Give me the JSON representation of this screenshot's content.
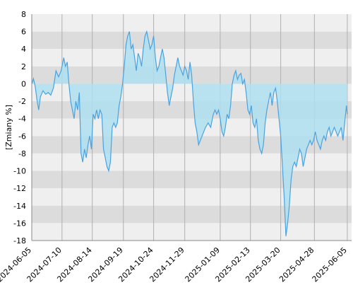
{
  "chart_data": {
    "type": "area",
    "title": "",
    "xlabel": "",
    "ylabel": "[Zmiany %]",
    "ylim": [
      -18,
      8
    ],
    "yticks": [
      8,
      6,
      4,
      2,
      0,
      -2,
      -4,
      -6,
      -8,
      -10,
      -12,
      -14,
      -16,
      -18
    ],
    "xticks": [
      "2024-06-05",
      "2024-07-10",
      "2024-08-14",
      "2024-09-19",
      "2024-10-24",
      "2024-11-29",
      "2025-01-09",
      "2025-02-13",
      "2025-03-20",
      "2025-04-28",
      "2025-06-05"
    ],
    "xlim": [
      "2024-06-05",
      "2025-06-10"
    ],
    "grid": true,
    "series": [
      {
        "line_color": "#4aa3df",
        "fill_color": "#aedff0",
        "points": [
          [
            "2024-06-05",
            0.0
          ],
          [
            "2024-06-07",
            0.6
          ],
          [
            "2024-06-09",
            -0.3
          ],
          [
            "2024-06-11",
            -1.8
          ],
          [
            "2024-06-13",
            -3.0
          ],
          [
            "2024-06-15",
            -1.5
          ],
          [
            "2024-06-18",
            -0.8
          ],
          [
            "2024-06-21",
            -1.2
          ],
          [
            "2024-06-24",
            -1.0
          ],
          [
            "2024-06-27",
            -1.3
          ],
          [
            "2024-06-30",
            -0.5
          ],
          [
            "2024-07-03",
            1.5
          ],
          [
            "2024-07-06",
            0.8
          ],
          [
            "2024-07-09",
            1.5
          ],
          [
            "2024-07-12",
            3.0
          ],
          [
            "2024-07-14",
            2.0
          ],
          [
            "2024-07-16",
            2.5
          ],
          [
            "2024-07-18",
            0.0
          ],
          [
            "2024-07-20",
            -2.0
          ],
          [
            "2024-07-22",
            -3.0
          ],
          [
            "2024-07-24",
            -4.0
          ],
          [
            "2024-07-26",
            -2.0
          ],
          [
            "2024-07-28",
            -3.0
          ],
          [
            "2024-07-30",
            -1.0
          ],
          [
            "2024-08-01",
            -8.0
          ],
          [
            "2024-08-03",
            -9.0
          ],
          [
            "2024-08-05",
            -7.5
          ],
          [
            "2024-08-07",
            -8.5
          ],
          [
            "2024-08-09",
            -7.0
          ],
          [
            "2024-08-11",
            -6.0
          ],
          [
            "2024-08-13",
            -7.5
          ],
          [
            "2024-08-15",
            -3.5
          ],
          [
            "2024-08-17",
            -4.0
          ],
          [
            "2024-08-19",
            -3.0
          ],
          [
            "2024-08-21",
            -4.0
          ],
          [
            "2024-08-23",
            -3.0
          ],
          [
            "2024-08-25",
            -3.5
          ],
          [
            "2024-08-27",
            -7.5
          ],
          [
            "2024-08-29",
            -8.5
          ],
          [
            "2024-08-31",
            -9.5
          ],
          [
            "2024-09-02",
            -10.0
          ],
          [
            "2024-09-04",
            -9.0
          ],
          [
            "2024-09-06",
            -5.0
          ],
          [
            "2024-09-08",
            -4.5
          ],
          [
            "2024-09-10",
            -5.0
          ],
          [
            "2024-09-12",
            -4.5
          ],
          [
            "2024-09-14",
            -2.5
          ],
          [
            "2024-09-16",
            -1.5
          ],
          [
            "2024-09-18",
            0.0
          ],
          [
            "2024-09-20",
            2.0
          ],
          [
            "2024-09-22",
            4.5
          ],
          [
            "2024-09-24",
            5.5
          ],
          [
            "2024-09-26",
            6.0
          ],
          [
            "2024-09-28",
            4.0
          ],
          [
            "2024-09-30",
            4.5
          ],
          [
            "2024-10-02",
            3.0
          ],
          [
            "2024-10-04",
            1.5
          ],
          [
            "2024-10-06",
            3.5
          ],
          [
            "2024-10-08",
            3.0
          ],
          [
            "2024-10-10",
            2.0
          ],
          [
            "2024-10-12",
            4.0
          ],
          [
            "2024-10-14",
            5.5
          ],
          [
            "2024-10-16",
            6.0
          ],
          [
            "2024-10-18",
            5.0
          ],
          [
            "2024-10-20",
            4.0
          ],
          [
            "2024-10-22",
            4.5
          ],
          [
            "2024-10-24",
            5.5
          ],
          [
            "2024-10-26",
            3.0
          ],
          [
            "2024-10-28",
            1.5
          ],
          [
            "2024-10-30",
            2.0
          ],
          [
            "2024-11-01",
            3.0
          ],
          [
            "2024-11-03",
            4.0
          ],
          [
            "2024-11-05",
            3.0
          ],
          [
            "2024-11-07",
            1.0
          ],
          [
            "2024-11-09",
            -1.0
          ],
          [
            "2024-11-11",
            -2.5
          ],
          [
            "2024-11-13",
            -1.5
          ],
          [
            "2024-11-15",
            -0.5
          ],
          [
            "2024-11-17",
            1.0
          ],
          [
            "2024-11-19",
            2.0
          ],
          [
            "2024-11-21",
            3.0
          ],
          [
            "2024-11-23",
            2.0
          ],
          [
            "2024-11-25",
            1.5
          ],
          [
            "2024-11-27",
            1.0
          ],
          [
            "2024-11-29",
            2.0
          ],
          [
            "2024-12-01",
            1.5
          ],
          [
            "2024-12-03",
            0.5
          ],
          [
            "2024-12-05",
            2.5
          ],
          [
            "2024-12-07",
            1.0
          ],
          [
            "2024-12-09",
            -2.0
          ],
          [
            "2024-12-11",
            -4.5
          ],
          [
            "2024-12-13",
            -5.5
          ],
          [
            "2024-12-15",
            -7.0
          ],
          [
            "2024-12-17",
            -6.5
          ],
          [
            "2024-12-19",
            -6.0
          ],
          [
            "2024-12-21",
            -5.5
          ],
          [
            "2024-12-23",
            -5.0
          ],
          [
            "2024-12-26",
            -4.5
          ],
          [
            "2024-12-29",
            -5.0
          ],
          [
            "2025-01-01",
            -3.5
          ],
          [
            "2025-01-03",
            -3.0
          ],
          [
            "2025-01-05",
            -3.5
          ],
          [
            "2025-01-07",
            -3.0
          ],
          [
            "2025-01-09",
            -4.0
          ],
          [
            "2025-01-11",
            -5.5
          ],
          [
            "2025-01-13",
            -6.0
          ],
          [
            "2025-01-15",
            -5.0
          ],
          [
            "2025-01-17",
            -3.5
          ],
          [
            "2025-01-19",
            -4.0
          ],
          [
            "2025-01-21",
            -2.5
          ],
          [
            "2025-01-23",
            0.0
          ],
          [
            "2025-01-25",
            1.0
          ],
          [
            "2025-01-27",
            1.5
          ],
          [
            "2025-01-29",
            0.5
          ],
          [
            "2025-01-31",
            1.0
          ],
          [
            "2025-02-02",
            1.2
          ],
          [
            "2025-02-04",
            0.0
          ],
          [
            "2025-02-06",
            0.5
          ],
          [
            "2025-02-08",
            -1.0
          ],
          [
            "2025-02-10",
            -3.0
          ],
          [
            "2025-02-12",
            -3.5
          ],
          [
            "2025-02-14",
            -2.5
          ],
          [
            "2025-02-16",
            -4.5
          ],
          [
            "2025-02-18",
            -5.0
          ],
          [
            "2025-02-20",
            -4.0
          ],
          [
            "2025-02-22",
            -6.5
          ],
          [
            "2025-02-24",
            -7.5
          ],
          [
            "2025-02-26",
            -8.0
          ],
          [
            "2025-02-28",
            -7.0
          ],
          [
            "2025-03-02",
            -4.5
          ],
          [
            "2025-03-04",
            -3.0
          ],
          [
            "2025-03-06",
            -2.0
          ],
          [
            "2025-03-08",
            -1.0
          ],
          [
            "2025-03-10",
            -2.5
          ],
          [
            "2025-03-12",
            -1.0
          ],
          [
            "2025-03-14",
            -0.5
          ],
          [
            "2025-03-16",
            -2.0
          ],
          [
            "2025-03-18",
            -4.0
          ],
          [
            "2025-03-20",
            -6.0
          ],
          [
            "2025-03-22",
            -9.5
          ],
          [
            "2025-03-24",
            -13.0
          ],
          [
            "2025-03-26",
            -17.5
          ],
          [
            "2025-03-28",
            -16.0
          ],
          [
            "2025-03-30",
            -14.0
          ],
          [
            "2025-04-01",
            -11.0
          ],
          [
            "2025-04-03",
            -9.5
          ],
          [
            "2025-04-05",
            -9.0
          ],
          [
            "2025-04-07",
            -9.5
          ],
          [
            "2025-04-09",
            -8.5
          ],
          [
            "2025-04-11",
            -7.5
          ],
          [
            "2025-04-13",
            -8.0
          ],
          [
            "2025-04-15",
            -9.5
          ],
          [
            "2025-04-17",
            -8.5
          ],
          [
            "2025-04-19",
            -7.5
          ],
          [
            "2025-04-21",
            -7.0
          ],
          [
            "2025-04-23",
            -6.5
          ],
          [
            "2025-04-25",
            -7.0
          ],
          [
            "2025-04-27",
            -6.5
          ],
          [
            "2025-04-29",
            -5.5
          ],
          [
            "2025-05-01",
            -6.5
          ],
          [
            "2025-05-03",
            -7.0
          ],
          [
            "2025-05-05",
            -7.5
          ],
          [
            "2025-05-07",
            -6.5
          ],
          [
            "2025-05-09",
            -6.0
          ],
          [
            "2025-05-11",
            -6.5
          ],
          [
            "2025-05-13",
            -5.5
          ],
          [
            "2025-05-15",
            -5.0
          ],
          [
            "2025-05-17",
            -6.0
          ],
          [
            "2025-05-19",
            -5.5
          ],
          [
            "2025-05-21",
            -5.0
          ],
          [
            "2025-05-23",
            -5.5
          ],
          [
            "2025-05-25",
            -6.0
          ],
          [
            "2025-05-27",
            -5.5
          ],
          [
            "2025-05-29",
            -5.0
          ],
          [
            "2025-05-31",
            -6.5
          ],
          [
            "2025-06-02",
            -4.5
          ],
          [
            "2025-06-04",
            -2.5
          ],
          [
            "2025-06-05",
            -3.5
          ]
        ]
      }
    ]
  },
  "colors": {
    "band_light": "#efefef",
    "band_dark": "#dcdcdc",
    "gridline": "#b0b0b0",
    "axis": "#888888",
    "line": "#4aa3df",
    "fill": "#aedff0"
  }
}
